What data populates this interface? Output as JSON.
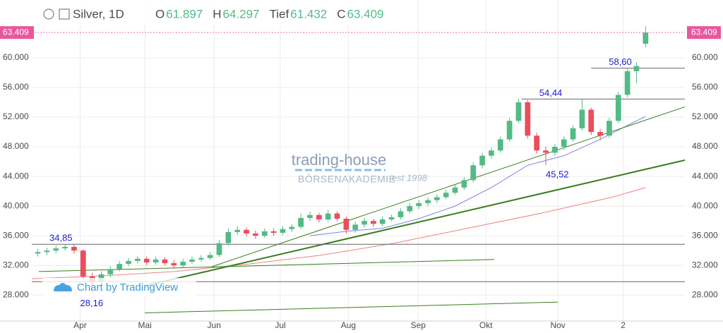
{
  "chart_data": {
    "type": "candlestick",
    "title": "Silver, 1D",
    "ohlc_labels": [
      "O",
      "H",
      "Tief",
      "C"
    ],
    "up_color": "#53b987",
    "down_color": "#eb4d5c",
    "x": [
      2,
      5,
      8,
      11,
      14,
      17,
      20,
      23,
      26,
      29,
      32,
      35,
      38,
      41,
      44,
      47,
      50,
      53,
      56,
      59,
      62,
      65,
      68,
      71,
      74,
      77,
      80,
      83,
      86,
      89,
      92,
      95,
      98,
      101,
      104,
      107,
      110,
      113,
      116,
      119,
      122,
      125,
      128,
      131,
      134,
      137,
      140,
      143,
      146,
      149,
      152,
      155,
      158,
      161,
      164,
      167,
      170,
      173,
      176,
      179,
      182,
      185,
      188,
      191,
      194,
      197,
      200,
      203
    ],
    "ohlc": [
      [
        33.6,
        34.2,
        33.2,
        33.8
      ],
      [
        33.8,
        34.4,
        33.4,
        34.0
      ],
      [
        34.0,
        34.7,
        33.6,
        34.3
      ],
      [
        34.3,
        34.9,
        34.0,
        34.5
      ],
      [
        34.5,
        34.8,
        33.6,
        34.0
      ],
      [
        34.0,
        34.2,
        30.0,
        30.5
      ],
      [
        30.5,
        31.0,
        28.16,
        29.8
      ],
      [
        29.8,
        31.2,
        29.5,
        30.8
      ],
      [
        30.8,
        31.9,
        30.4,
        31.5
      ],
      [
        31.5,
        32.6,
        31.2,
        32.2
      ],
      [
        32.2,
        33.0,
        31.9,
        32.6
      ],
      [
        32.6,
        33.3,
        32.3,
        32.9
      ],
      [
        32.9,
        33.2,
        32.0,
        32.4
      ],
      [
        32.4,
        33.2,
        32.1,
        32.8
      ],
      [
        32.8,
        33.1,
        32.0,
        32.3
      ],
      [
        32.3,
        32.7,
        31.6,
        32.0
      ],
      [
        32.0,
        32.9,
        31.7,
        32.5
      ],
      [
        32.5,
        33.2,
        32.2,
        32.8
      ],
      [
        32.8,
        33.4,
        32.5,
        33.0
      ],
      [
        33.0,
        33.8,
        32.7,
        33.4
      ],
      [
        33.4,
        35.4,
        33.1,
        35.0
      ],
      [
        35.0,
        37.0,
        34.7,
        36.5
      ],
      [
        36.5,
        37.3,
        36.1,
        36.8
      ],
      [
        36.8,
        37.1,
        35.9,
        36.3
      ],
      [
        36.3,
        36.7,
        35.6,
        36.0
      ],
      [
        36.0,
        37.0,
        35.7,
        36.6
      ],
      [
        36.6,
        37.0,
        36.0,
        36.4
      ],
      [
        36.4,
        37.3,
        36.1,
        36.9
      ],
      [
        36.9,
        37.6,
        36.5,
        37.2
      ],
      [
        37.2,
        39.0,
        36.9,
        38.4
      ],
      [
        38.4,
        39.3,
        38.0,
        38.8
      ],
      [
        38.8,
        39.1,
        37.8,
        38.2
      ],
      [
        38.2,
        39.5,
        37.9,
        39.0
      ],
      [
        39.0,
        39.3,
        38.0,
        38.3
      ],
      [
        38.3,
        38.6,
        36.3,
        36.8
      ],
      [
        36.8,
        37.9,
        36.4,
        37.5
      ],
      [
        37.5,
        38.4,
        37.1,
        38.0
      ],
      [
        38.0,
        38.3,
        37.2,
        37.6
      ],
      [
        37.6,
        38.6,
        37.3,
        38.2
      ],
      [
        38.2,
        38.9,
        37.9,
        38.5
      ],
      [
        38.5,
        39.7,
        38.2,
        39.3
      ],
      [
        39.3,
        40.4,
        39.0,
        40.0
      ],
      [
        40.0,
        40.8,
        39.6,
        40.4
      ],
      [
        40.4,
        41.2,
        40.0,
        40.8
      ],
      [
        40.8,
        41.6,
        40.4,
        41.2
      ],
      [
        41.2,
        42.2,
        40.9,
        41.8
      ],
      [
        41.8,
        42.9,
        41.5,
        42.5
      ],
      [
        42.5,
        43.9,
        42.2,
        43.5
      ],
      [
        43.5,
        45.9,
        43.2,
        45.5
      ],
      [
        45.5,
        47.2,
        45.1,
        46.8
      ],
      [
        46.8,
        47.9,
        46.4,
        47.5
      ],
      [
        47.5,
        49.4,
        47.2,
        49.0
      ],
      [
        49.0,
        51.9,
        48.7,
        51.5
      ],
      [
        51.5,
        54.44,
        51.2,
        54.0
      ],
      [
        54.0,
        54.3,
        49.1,
        49.5
      ],
      [
        49.5,
        49.9,
        47.1,
        47.5
      ],
      [
        47.5,
        48.0,
        45.52,
        47.2
      ],
      [
        47.2,
        48.4,
        46.8,
        48.0
      ],
      [
        48.0,
        49.4,
        47.6,
        49.0
      ],
      [
        49.0,
        50.9,
        48.7,
        50.5
      ],
      [
        50.5,
        54.4,
        50.2,
        53.0
      ],
      [
        53.0,
        53.3,
        49.6,
        50.0
      ],
      [
        50.0,
        50.4,
        48.9,
        49.5
      ],
      [
        49.5,
        51.9,
        49.2,
        51.5
      ],
      [
        51.5,
        55.4,
        51.2,
        55.0
      ],
      [
        55.0,
        58.6,
        54.7,
        58.2
      ],
      [
        58.2,
        59.4,
        56.6,
        58.9
      ],
      [
        61.897,
        64.297,
        61.432,
        63.409
      ]
    ],
    "moving_averages": [
      {
        "color": "#7b86e0",
        "x": [
          92,
          104,
          116,
          128,
          140,
          152,
          164,
          176,
          188,
          200,
          203
        ],
        "values": [
          36.0,
          36.6,
          37.0,
          38.3,
          40.0,
          42.5,
          45.5,
          46.8,
          49.0,
          51.5,
          52.1
        ]
      },
      {
        "color": "#f08080",
        "x": [
          0,
          24,
          48,
          72,
          96,
          120,
          144,
          168,
          192,
          203
        ],
        "values": [
          30.2,
          30.6,
          31.2,
          32.2,
          33.4,
          35.0,
          37.0,
          39.0,
          41.2,
          42.5
        ]
      }
    ],
    "trendlines": [
      {
        "color": "#3a7d1c",
        "width": 2,
        "x": [
          37.4,
          216
        ],
        "values": [
          29.25,
          46.2
        ]
      },
      {
        "color": "#3a7d1c",
        "width": 1,
        "x": [
          59.6,
          216
        ],
        "values": [
          31.84,
          53.39
        ]
      },
      {
        "color": "#3a7d1c",
        "width": 1,
        "x": [
          2.3,
          153
        ],
        "values": [
          31.17,
          32.8
        ]
      },
      {
        "color": "#3a7d1c",
        "width": 1,
        "x": [
          37.4,
          174
        ],
        "values": [
          25.6,
          27.05
        ]
      }
    ],
    "levels": [
      {
        "value": 58.6,
        "label": "58,60",
        "x": [
          185,
          216
        ]
      },
      {
        "value": 54.44,
        "label": "54,44",
        "x": [
          162,
          216
        ]
      },
      {
        "value": 34.85,
        "label": "34,85",
        "x": [
          0,
          216
        ]
      },
      {
        "value": 29.8,
        "x": [
          0,
          216
        ]
      }
    ],
    "annotations": [
      {
        "x": 170,
        "value": 45.52,
        "label": "45,52"
      },
      {
        "x": 16,
        "value": 28.16,
        "label": "28,16"
      }
    ],
    "watermark": [
      "trading-house",
      "BÖRSENAKADEMIE",
      "est 1998"
    ],
    "credit": "Chart by TradingView",
    "xlim": [
      0,
      216
    ],
    "xticks": [
      {
        "value": 16,
        "label": "Apr"
      },
      {
        "value": 37.4,
        "label": "Mai"
      },
      {
        "value": 60.3,
        "label": "Jun"
      },
      {
        "value": 82.2,
        "label": "Jul"
      },
      {
        "value": 104.7,
        "label": "Aug"
      },
      {
        "value": 127.8,
        "label": "Sep"
      },
      {
        "value": 150.2,
        "label": "Okt"
      },
      {
        "value": 174,
        "label": "Nov"
      },
      {
        "value": 195.6,
        "label": "2"
      }
    ],
    "ylim": [
      24.5,
      67.8
    ],
    "yticks": [
      {
        "value": 28,
        "label": "28.000"
      },
      {
        "value": 32,
        "label": "32.000"
      },
      {
        "value": 36,
        "label": "36.000"
      },
      {
        "value": 40,
        "label": "40.000"
      },
      {
        "value": 44,
        "label": "44.000"
      },
      {
        "value": 48,
        "label": "48.000"
      },
      {
        "value": 52,
        "label": "52.000"
      },
      {
        "value": 56,
        "label": "56.000"
      },
      {
        "value": 60,
        "label": "60.000"
      }
    ],
    "grid": true
  }
}
